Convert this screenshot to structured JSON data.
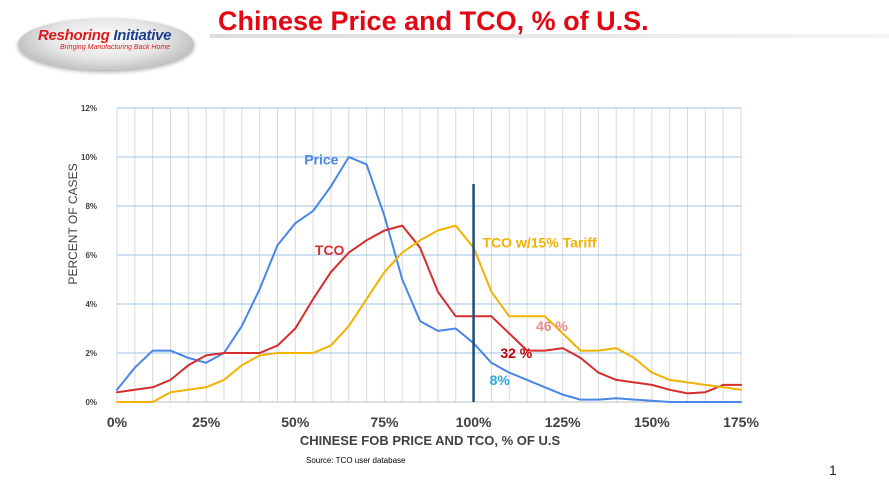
{
  "logo": {
    "name_first": "Reshoring",
    "name_second": "Initiative",
    "tagline": "Bringing Manufacturing Back Home"
  },
  "slide": {
    "title": "Chinese Price and TCO, % of U.S.",
    "source": "Source: TCO user database",
    "page_number": "1"
  },
  "chart_data": {
    "type": "line",
    "title": "",
    "xlabel": "CHINESE FOB PRICE AND TCO, % OF U.S",
    "ylabel": "PERCENT OF CASES",
    "xlim": [
      0,
      175
    ],
    "ylim": [
      0,
      12
    ],
    "x_ticks": [
      0,
      25,
      50,
      75,
      100,
      125,
      150,
      175
    ],
    "x_tick_labels": [
      "0%",
      "25%",
      "50%",
      "75%",
      "100%",
      "125%",
      "150%",
      "175%"
    ],
    "y_ticks": [
      0,
      2,
      4,
      6,
      8,
      10,
      12
    ],
    "y_tick_labels": [
      "0%",
      "2%",
      "4%",
      "6%",
      "8%",
      "10%",
      "12%"
    ],
    "grid": "vertical lines every 5%, horizontal lines every 2%",
    "vertical_marker": {
      "x": 100,
      "color": "#1f4e79"
    },
    "series": [
      {
        "name": "Price",
        "color": "#4a86e8",
        "x": [
          0,
          5,
          10,
          15,
          20,
          25,
          30,
          35,
          40,
          45,
          50,
          55,
          60,
          65,
          70,
          75,
          80,
          85,
          90,
          95,
          100,
          105,
          110,
          115,
          120,
          125,
          130,
          135,
          140,
          145,
          150,
          155,
          160,
          165,
          170,
          175
        ],
        "values": [
          0.5,
          1.4,
          2.1,
          2.1,
          1.8,
          1.6,
          2.0,
          3.1,
          4.6,
          6.4,
          7.3,
          7.8,
          8.8,
          10.0,
          9.7,
          7.6,
          5.0,
          3.3,
          2.9,
          3.0,
          2.4,
          1.6,
          1.2,
          0.9,
          0.6,
          0.3,
          0.1,
          0.1,
          0.15,
          0.1,
          0.05,
          0.0,
          0.0,
          0.0,
          0.0,
          0.0
        ]
      },
      {
        "name": "TCO",
        "color": "#d62d2d",
        "x": [
          0,
          5,
          10,
          15,
          20,
          25,
          30,
          35,
          40,
          45,
          50,
          55,
          60,
          65,
          70,
          75,
          80,
          85,
          90,
          95,
          100,
          105,
          110,
          115,
          120,
          125,
          130,
          135,
          140,
          145,
          150,
          155,
          160,
          165,
          170,
          175
        ],
        "values": [
          0.4,
          0.5,
          0.6,
          0.9,
          1.5,
          1.9,
          2.0,
          2.0,
          2.0,
          2.3,
          3.0,
          4.2,
          5.3,
          6.1,
          6.6,
          7.0,
          7.2,
          6.3,
          4.5,
          3.5,
          3.5,
          3.5,
          2.8,
          2.1,
          2.1,
          2.2,
          1.8,
          1.2,
          0.9,
          0.8,
          0.7,
          0.5,
          0.35,
          0.4,
          0.7,
          0.7
        ]
      },
      {
        "name": "TCO  w/15% Tariff",
        "color": "#f2b200",
        "x": [
          0,
          5,
          10,
          15,
          20,
          25,
          30,
          35,
          40,
          45,
          50,
          55,
          60,
          65,
          70,
          75,
          80,
          85,
          90,
          95,
          100,
          105,
          110,
          115,
          120,
          125,
          130,
          135,
          140,
          145,
          150,
          155,
          160,
          165,
          170,
          175
        ],
        "values": [
          0.0,
          0.0,
          0.0,
          0.4,
          0.5,
          0.6,
          0.9,
          1.5,
          1.9,
          2.0,
          2.0,
          2.0,
          2.3,
          3.1,
          4.2,
          5.3,
          6.1,
          6.6,
          7.0,
          7.2,
          6.3,
          4.5,
          3.5,
          3.5,
          3.5,
          2.8,
          2.1,
          2.1,
          2.2,
          1.8,
          1.2,
          0.9,
          0.8,
          0.7,
          0.6,
          0.5
        ]
      }
    ],
    "annotations": [
      {
        "text": "Price",
        "color": "#4a86e8",
        "x": 52.5,
        "y": 9.7
      },
      {
        "text": "TCO",
        "color": "#d62d2d",
        "x": 55.5,
        "y": 6.0
      },
      {
        "text": "TCO  w/15% Tariff",
        "color": "#f2b200",
        "x": 102.5,
        "y": 6.3
      },
      {
        "text": "46 %",
        "color": "#e88a8a",
        "x": 117.5,
        "y": 2.9
      },
      {
        "text": "32 %",
        "color": "#c00000",
        "x": 107.5,
        "y": 1.8
      },
      {
        "text": "8%",
        "color": "#29a8e0",
        "x": 104.5,
        "y": 0.7
      }
    ]
  }
}
